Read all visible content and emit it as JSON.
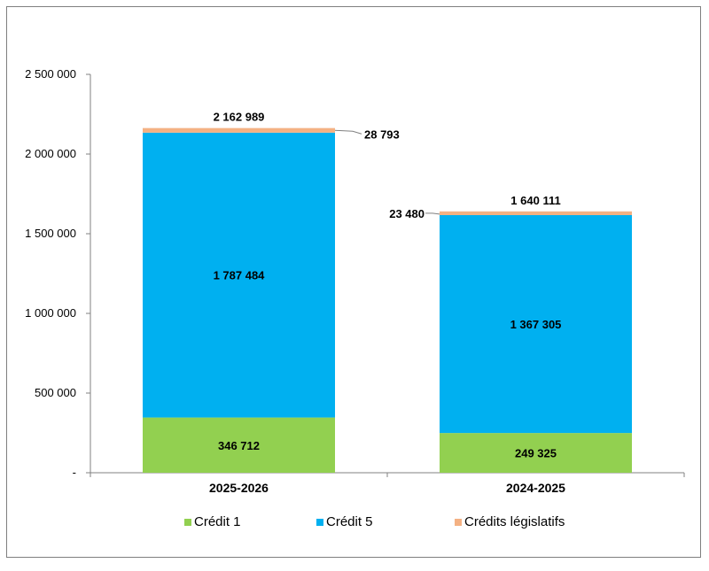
{
  "chart_data": {
    "type": "bar",
    "stacked": true,
    "categories": [
      "2025-2026",
      "2024-2025"
    ],
    "series": [
      {
        "name": "Crédit 1",
        "color": "#92d050",
        "values": [
          346712,
          249325
        ],
        "labels": [
          "346 712",
          "249 325"
        ]
      },
      {
        "name": "Crédit 5",
        "color": "#00b0f0",
        "values": [
          1787484,
          1367305
        ],
        "labels": [
          "1 787 484",
          "1 367 305"
        ]
      },
      {
        "name": "Crédits législatifs",
        "color": "#f4b183",
        "values": [
          28793,
          23480
        ],
        "labels": [
          "28 793",
          "23 480"
        ]
      }
    ],
    "totals": [
      "2 162 989",
      "1 640 111"
    ],
    "ylim": [
      0,
      2500000
    ],
    "y_ticks": [
      {
        "value": 0,
        "label": "-"
      },
      {
        "value": 500000,
        "label": "500 000"
      },
      {
        "value": 1000000,
        "label": "1 000 000"
      },
      {
        "value": 1500000,
        "label": "1 500 000"
      },
      {
        "value": 2000000,
        "label": "2 000 000"
      },
      {
        "value": 2500000,
        "label": "2 500 000"
      }
    ],
    "grid": false,
    "legend_position": "bottom"
  }
}
